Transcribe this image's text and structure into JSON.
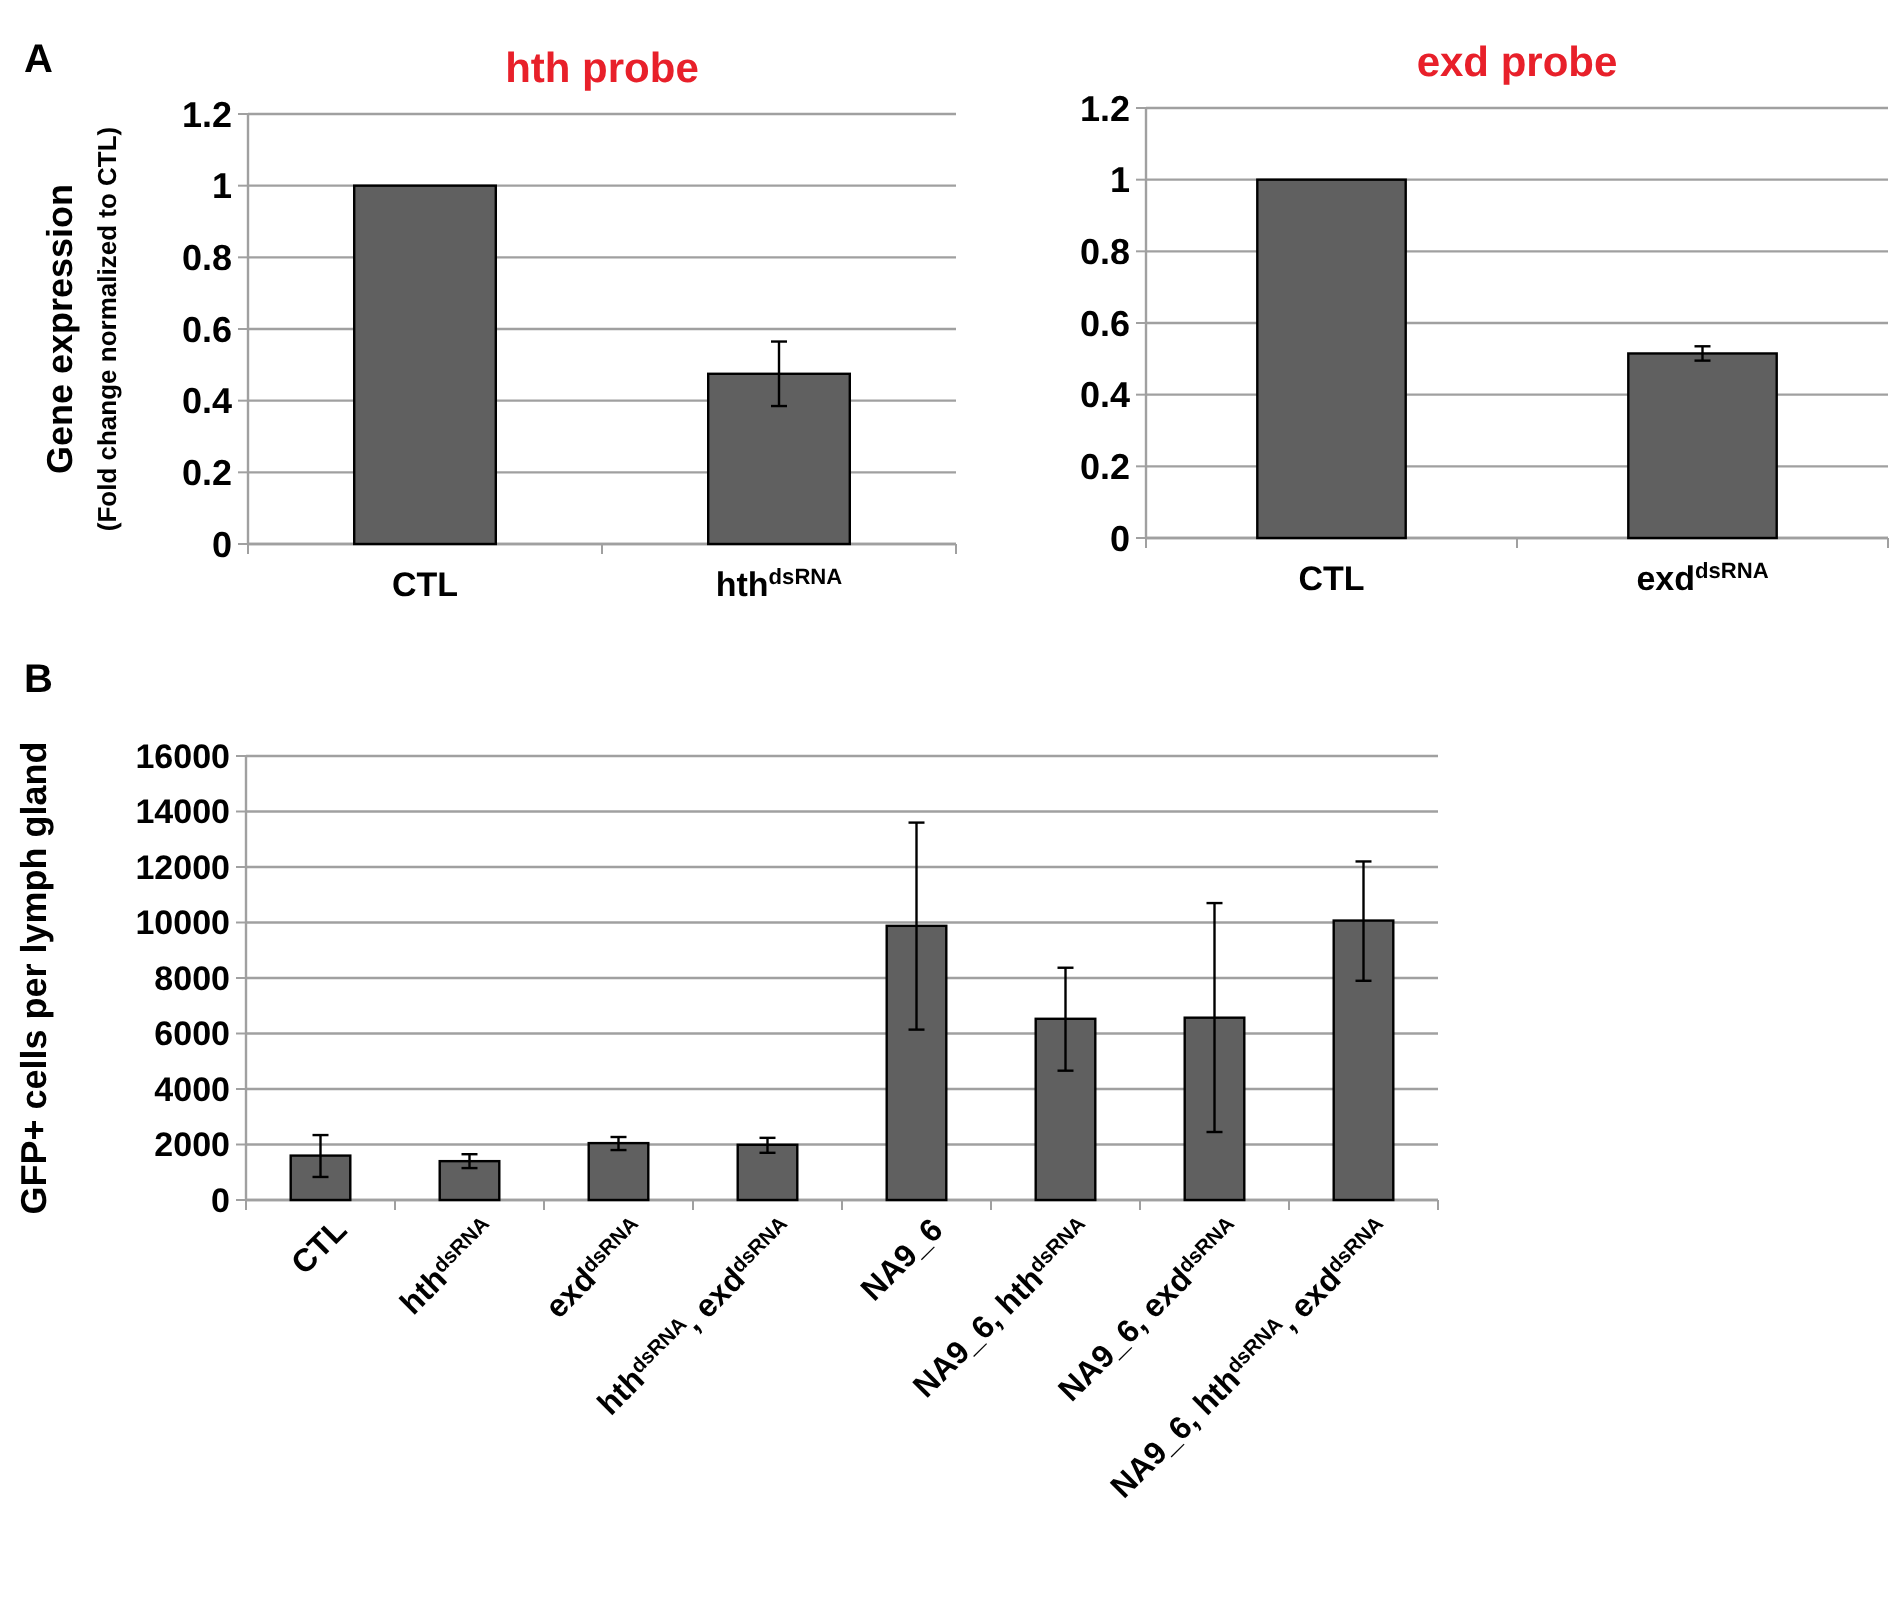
{
  "chart_data": [
    {
      "type": "bar",
      "title": "hth probe",
      "ylabel": "Gene expression\n(Fold change normalized to CTL)",
      "annotations": [
        "A"
      ],
      "categories": [
        "CTL",
        "hth$^{dsRNA}$"
      ],
      "values": [
        1,
        0.475
      ],
      "errors": [
        null,
        [
          0.385,
          0.565
        ]
      ],
      "color": "#606060",
      "ylim": [
        0,
        1.2
      ],
      "yticks": [
        0,
        0.2,
        0.4,
        0.6,
        0.8,
        1,
        1.2
      ],
      "grid": "y"
    },
    {
      "type": "bar",
      "title": "exd probe",
      "categories": [
        "CTL",
        "exd$^{dsRNA}$"
      ],
      "values": [
        1,
        0.515
      ],
      "errors": [
        null,
        [
          0.495,
          0.535
        ]
      ],
      "color": "#606060",
      "ylim": [
        0,
        1.2
      ],
      "yticks": [
        0,
        0.2,
        0.4,
        0.6,
        0.8,
        1,
        1.2
      ],
      "grid": "y"
    },
    {
      "type": "bar",
      "ylabel": "GFP+ cells per lymph gland",
      "annotations": [
        "B"
      ],
      "categories": [
        "CTL",
        "hth$^{dsRNA}$",
        "exd$^{dsRNA}$",
        "hth$^{dsRNA}$, exd$^{dsRNA}$",
        "NA9_6",
        "NA9_6, hth$^{dsRNA}$",
        "NA9_6, exd$^{dsRNA}$",
        "NA9_6, hth$^{dsRNA}$, exd$^{dsRNA}$"
      ],
      "values": [
        1600,
        1400,
        2050,
        1990,
        9880,
        6530,
        6570,
        10070
      ],
      "errors": [
        [
          830,
          2340
        ],
        [
          1150,
          1650
        ],
        [
          1800,
          2270
        ],
        [
          1700,
          2240
        ],
        [
          6140,
          13600
        ],
        [
          4660,
          8370
        ],
        [
          2450,
          10700
        ],
        [
          7900,
          12200
        ]
      ],
      "color": "#606060",
      "ylim": [
        0,
        16000
      ],
      "yticks": [
        0,
        2000,
        4000,
        6000,
        8000,
        10000,
        12000,
        14000,
        16000
      ],
      "grid": "y"
    }
  ]
}
